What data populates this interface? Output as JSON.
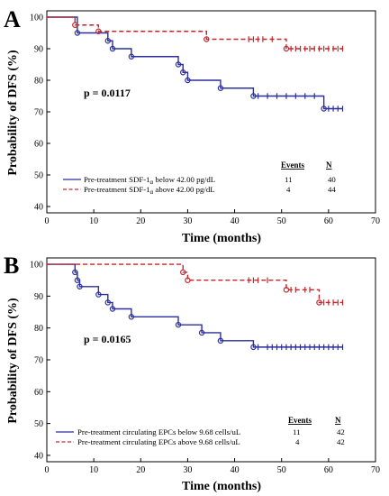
{
  "chart_data": [
    {
      "type": "line",
      "subtype": "kaplan-meier",
      "panel": "A",
      "xlabel": "Time (months)",
      "ylabel": "Probability of DFS (%)",
      "xlim": [
        0,
        70
      ],
      "ylim": [
        38,
        102
      ],
      "xticks": [
        "0",
        "10",
        "20",
        "30",
        "40",
        "50",
        "60",
        "70"
      ],
      "yticks": [
        "40",
        "50",
        "60",
        "70",
        "80",
        "90",
        "100"
      ],
      "grid": false,
      "annotation": "p = 0.0117",
      "legend_headers": {
        "events": "Events",
        "n": "N"
      },
      "series": [
        {
          "name_main": "Pre-treatment SDF-1",
          "name_sub": "α",
          "name_tail": " below 42.00 pg/dL",
          "events": "11",
          "n": "40",
          "color": "#2b2f9e",
          "dash": "solid",
          "steps": [
            [
              0,
              100
            ],
            [
              6.5,
              95
            ],
            [
              13,
              92.5
            ],
            [
              14,
              90
            ],
            [
              18,
              87.5
            ],
            [
              28,
              85
            ],
            [
              29,
              82.5
            ],
            [
              30,
              80
            ],
            [
              37,
              77.5
            ],
            [
              44,
              75
            ],
            [
              59,
              71
            ],
            [
              63,
              71
            ]
          ],
          "events_x": [
            [
              6.5,
              95
            ],
            [
              13,
              92.5
            ],
            [
              14,
              90
            ],
            [
              18,
              87.5
            ],
            [
              28,
              85
            ],
            [
              29,
              82.5
            ],
            [
              30,
              80
            ],
            [
              37,
              77.5
            ],
            [
              44,
              75
            ],
            [
              59,
              71
            ]
          ],
          "censored": [
            [
              45,
              75
            ],
            [
              47,
              75
            ],
            [
              49,
              75
            ],
            [
              51,
              75
            ],
            [
              53,
              75
            ],
            [
              55,
              75
            ],
            [
              57,
              75
            ],
            [
              60,
              71
            ],
            [
              61,
              71
            ],
            [
              62,
              71
            ],
            [
              63,
              71
            ]
          ]
        },
        {
          "name_main": "Pre-treatment SDF-1",
          "name_sub": "α",
          "name_tail": " above 42.00 pg/dL",
          "events": "4",
          "n": "44",
          "color": "#c0272d",
          "dash": "dashed",
          "steps": [
            [
              0,
              100
            ],
            [
              6,
              97.5
            ],
            [
              11,
              95.5
            ],
            [
              34,
              93
            ],
            [
              51,
              90
            ],
            [
              63,
              90
            ]
          ],
          "events_x": [
            [
              6,
              97.5
            ],
            [
              11,
              95.5
            ],
            [
              34,
              93
            ],
            [
              51,
              90
            ]
          ],
          "censored": [
            [
              43,
              93
            ],
            [
              44,
              93
            ],
            [
              45,
              93
            ],
            [
              46,
              93
            ],
            [
              48,
              93
            ],
            [
              52,
              90
            ],
            [
              53,
              90
            ],
            [
              54,
              90
            ],
            [
              55,
              90
            ],
            [
              56,
              90
            ],
            [
              57,
              90
            ],
            [
              58,
              90
            ],
            [
              59,
              90
            ],
            [
              60,
              90
            ],
            [
              61,
              90
            ],
            [
              62,
              90
            ],
            [
              63,
              90
            ]
          ]
        }
      ]
    },
    {
      "type": "line",
      "subtype": "kaplan-meier",
      "panel": "B",
      "xlabel": "Time (months)",
      "ylabel": "Probability of DFS (%)",
      "xlim": [
        0,
        70
      ],
      "ylim": [
        38,
        102
      ],
      "xticks": [
        "0",
        "10",
        "20",
        "30",
        "40",
        "50",
        "60",
        "70"
      ],
      "yticks": [
        "40",
        "50",
        "60",
        "70",
        "80",
        "90",
        "100"
      ],
      "grid": false,
      "annotation": "p = 0.0165",
      "legend_headers": {
        "events": "Events",
        "n": "N"
      },
      "series": [
        {
          "name_main": "Pre-treatment circulating EPCs below 9.68 cells/uL",
          "name_sub": "",
          "name_tail": "",
          "events": "11",
          "n": "42",
          "color": "#2b2f9e",
          "dash": "solid",
          "steps": [
            [
              0,
              100
            ],
            [
              6,
              97.5
            ],
            [
              6.5,
              95
            ],
            [
              7,
              93
            ],
            [
              11,
              90.5
            ],
            [
              13,
              88
            ],
            [
              14,
              86
            ],
            [
              18,
              83.5
            ],
            [
              28,
              81
            ],
            [
              33,
              78.5
            ],
            [
              37,
              76
            ],
            [
              44,
              74
            ],
            [
              63,
              74
            ]
          ],
          "events_x": [
            [
              6,
              97.5
            ],
            [
              6.5,
              95
            ],
            [
              7,
              93
            ],
            [
              11,
              90.5
            ],
            [
              13,
              88
            ],
            [
              14,
              86
            ],
            [
              18,
              83.5
            ],
            [
              28,
              81
            ],
            [
              33,
              78.5
            ],
            [
              37,
              76
            ],
            [
              44,
              74
            ]
          ],
          "censored": [
            [
              45,
              74
            ],
            [
              47,
              74
            ],
            [
              48,
              74
            ],
            [
              49,
              74
            ],
            [
              50,
              74
            ],
            [
              51,
              74
            ],
            [
              52,
              74
            ],
            [
              53,
              74
            ],
            [
              54,
              74
            ],
            [
              55,
              74
            ],
            [
              56,
              74
            ],
            [
              57,
              74
            ],
            [
              58,
              74
            ],
            [
              59,
              74
            ],
            [
              60,
              74
            ],
            [
              61,
              74
            ],
            [
              62,
              74
            ],
            [
              63,
              74
            ]
          ]
        },
        {
          "name_main": "Pre-treatment circulating EPCs above 9.68 cells/uL",
          "name_sub": "",
          "name_tail": "",
          "events": "4",
          "n": "42",
          "color": "#c0272d",
          "dash": "dashed",
          "steps": [
            [
              0,
              100
            ],
            [
              29,
              97.5
            ],
            [
              30,
              95
            ],
            [
              51,
              92
            ],
            [
              58,
              88
            ],
            [
              63,
              88
            ]
          ],
          "events_x": [
            [
              29,
              97.5
            ],
            [
              30,
              95
            ],
            [
              51,
              92
            ],
            [
              58,
              88
            ]
          ],
          "censored": [
            [
              43,
              95
            ],
            [
              44,
              95
            ],
            [
              45,
              95
            ],
            [
              47,
              95
            ],
            [
              52,
              92
            ],
            [
              53,
              92
            ],
            [
              55,
              92
            ],
            [
              56,
              92
            ],
            [
              59,
              88
            ],
            [
              60,
              88
            ],
            [
              61,
              88
            ],
            [
              62,
              88
            ],
            [
              63,
              88
            ]
          ]
        }
      ]
    }
  ]
}
